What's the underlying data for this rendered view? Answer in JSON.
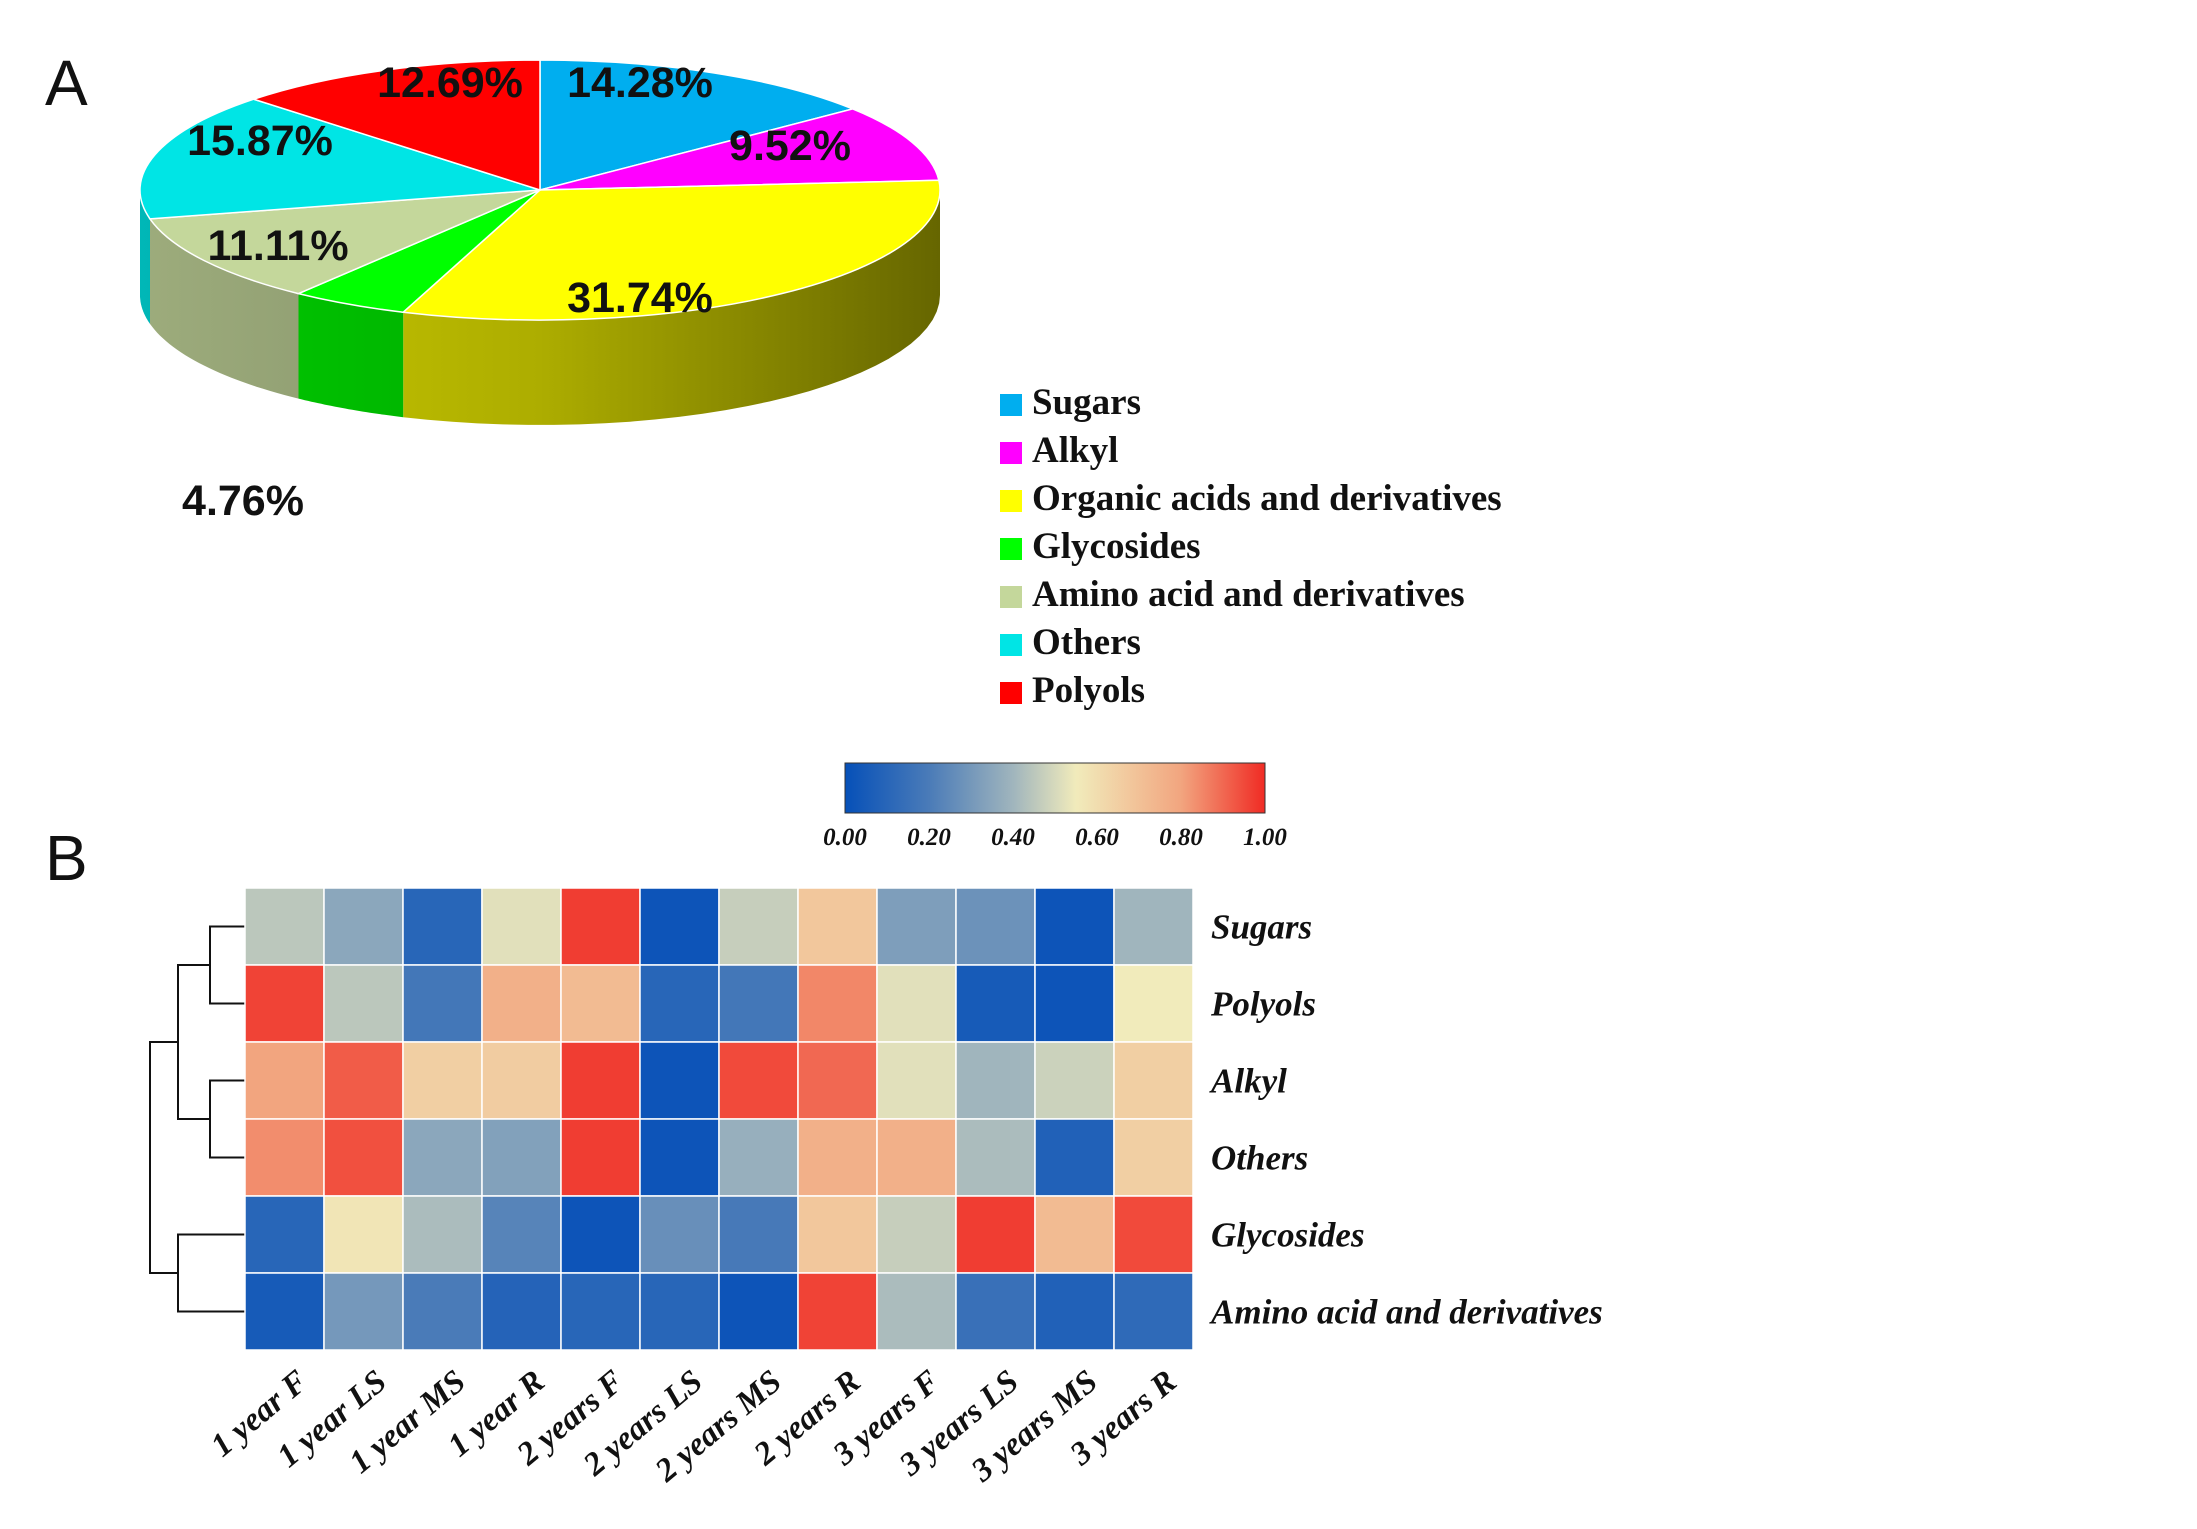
{
  "panels": {
    "a": "A",
    "b": "B"
  },
  "chart_data": [
    {
      "type": "pie",
      "title": "",
      "panel": "A",
      "slices": [
        {
          "name": "Sugars",
          "value": 14.28,
          "label": "14.28%",
          "color": "#00aeef"
        },
        {
          "name": "Alkyl",
          "value": 9.52,
          "label": "9.52%",
          "color": "#ff00ff"
        },
        {
          "name": "Organic acids and derivatives",
          "value": 31.74,
          "label": "31.74%",
          "color": "#ffff00"
        },
        {
          "name": "Glycosides",
          "value": 4.76,
          "label": "4.76%",
          "color": "#00ff00"
        },
        {
          "name": "Amino acid and derivatives",
          "value": 11.11,
          "label": "11.11%",
          "color": "#c4d79b"
        },
        {
          "name": "Others",
          "value": 15.87,
          "label": "15.87%",
          "color": "#00e5e5"
        },
        {
          "name": "Polyols",
          "value": 12.69,
          "label": "12.69%",
          "color": "#ff0000"
        }
      ],
      "legend": {
        "position": "right",
        "entries": [
          "Sugars",
          "Alkyl",
          "Organic acids and derivatives",
          "Glycosides",
          "Amino acid and derivatives",
          "Others",
          "Polyols"
        ]
      }
    },
    {
      "type": "heatmap",
      "title": "",
      "panel": "B",
      "rows": [
        "Sugars",
        "Polyols",
        "Alkyl",
        "Others",
        "Glycosides",
        "Amino acid and derivatives"
      ],
      "columns": [
        "1 year F",
        "1 year LS",
        "1 year MS",
        "1 year R",
        "2 years F",
        "2 years LS",
        "2 years MS",
        "2 years R",
        "3 years F",
        "3 years LS",
        "3 years MS",
        "3 years R"
      ],
      "values": [
        [
          0.45,
          0.35,
          0.1,
          0.52,
          0.97,
          0.02,
          0.47,
          0.68,
          0.32,
          0.28,
          0.02,
          0.4
        ],
        [
          0.96,
          0.45,
          0.18,
          0.76,
          0.72,
          0.1,
          0.18,
          0.85,
          0.52,
          0.05,
          0.02,
          0.55
        ],
        [
          0.8,
          0.92,
          0.65,
          0.66,
          0.97,
          0.02,
          0.95,
          0.9,
          0.52,
          0.4,
          0.48,
          0.65
        ],
        [
          0.84,
          0.94,
          0.35,
          0.33,
          0.97,
          0.02,
          0.38,
          0.76,
          0.76,
          0.42,
          0.08,
          0.65
        ],
        [
          0.1,
          0.57,
          0.42,
          0.23,
          0.02,
          0.27,
          0.19,
          0.68,
          0.47,
          0.97,
          0.72,
          0.95
        ],
        [
          0.05,
          0.3,
          0.2,
          0.09,
          0.1,
          0.1,
          0.02,
          0.96,
          0.42,
          0.15,
          0.08,
          0.12
        ]
      ],
      "colorbar": {
        "range": [
          0.0,
          1.0
        ],
        "ticks": [
          "0.00",
          "0.20",
          "0.40",
          "0.60",
          "0.80",
          "1.00"
        ],
        "colors": [
          "#0650b8",
          "#4a7bb8",
          "#a0b5bd",
          "#f1ebbb",
          "#f2a57f",
          "#f02b24"
        ]
      },
      "dendrogram": "rows"
    }
  ]
}
